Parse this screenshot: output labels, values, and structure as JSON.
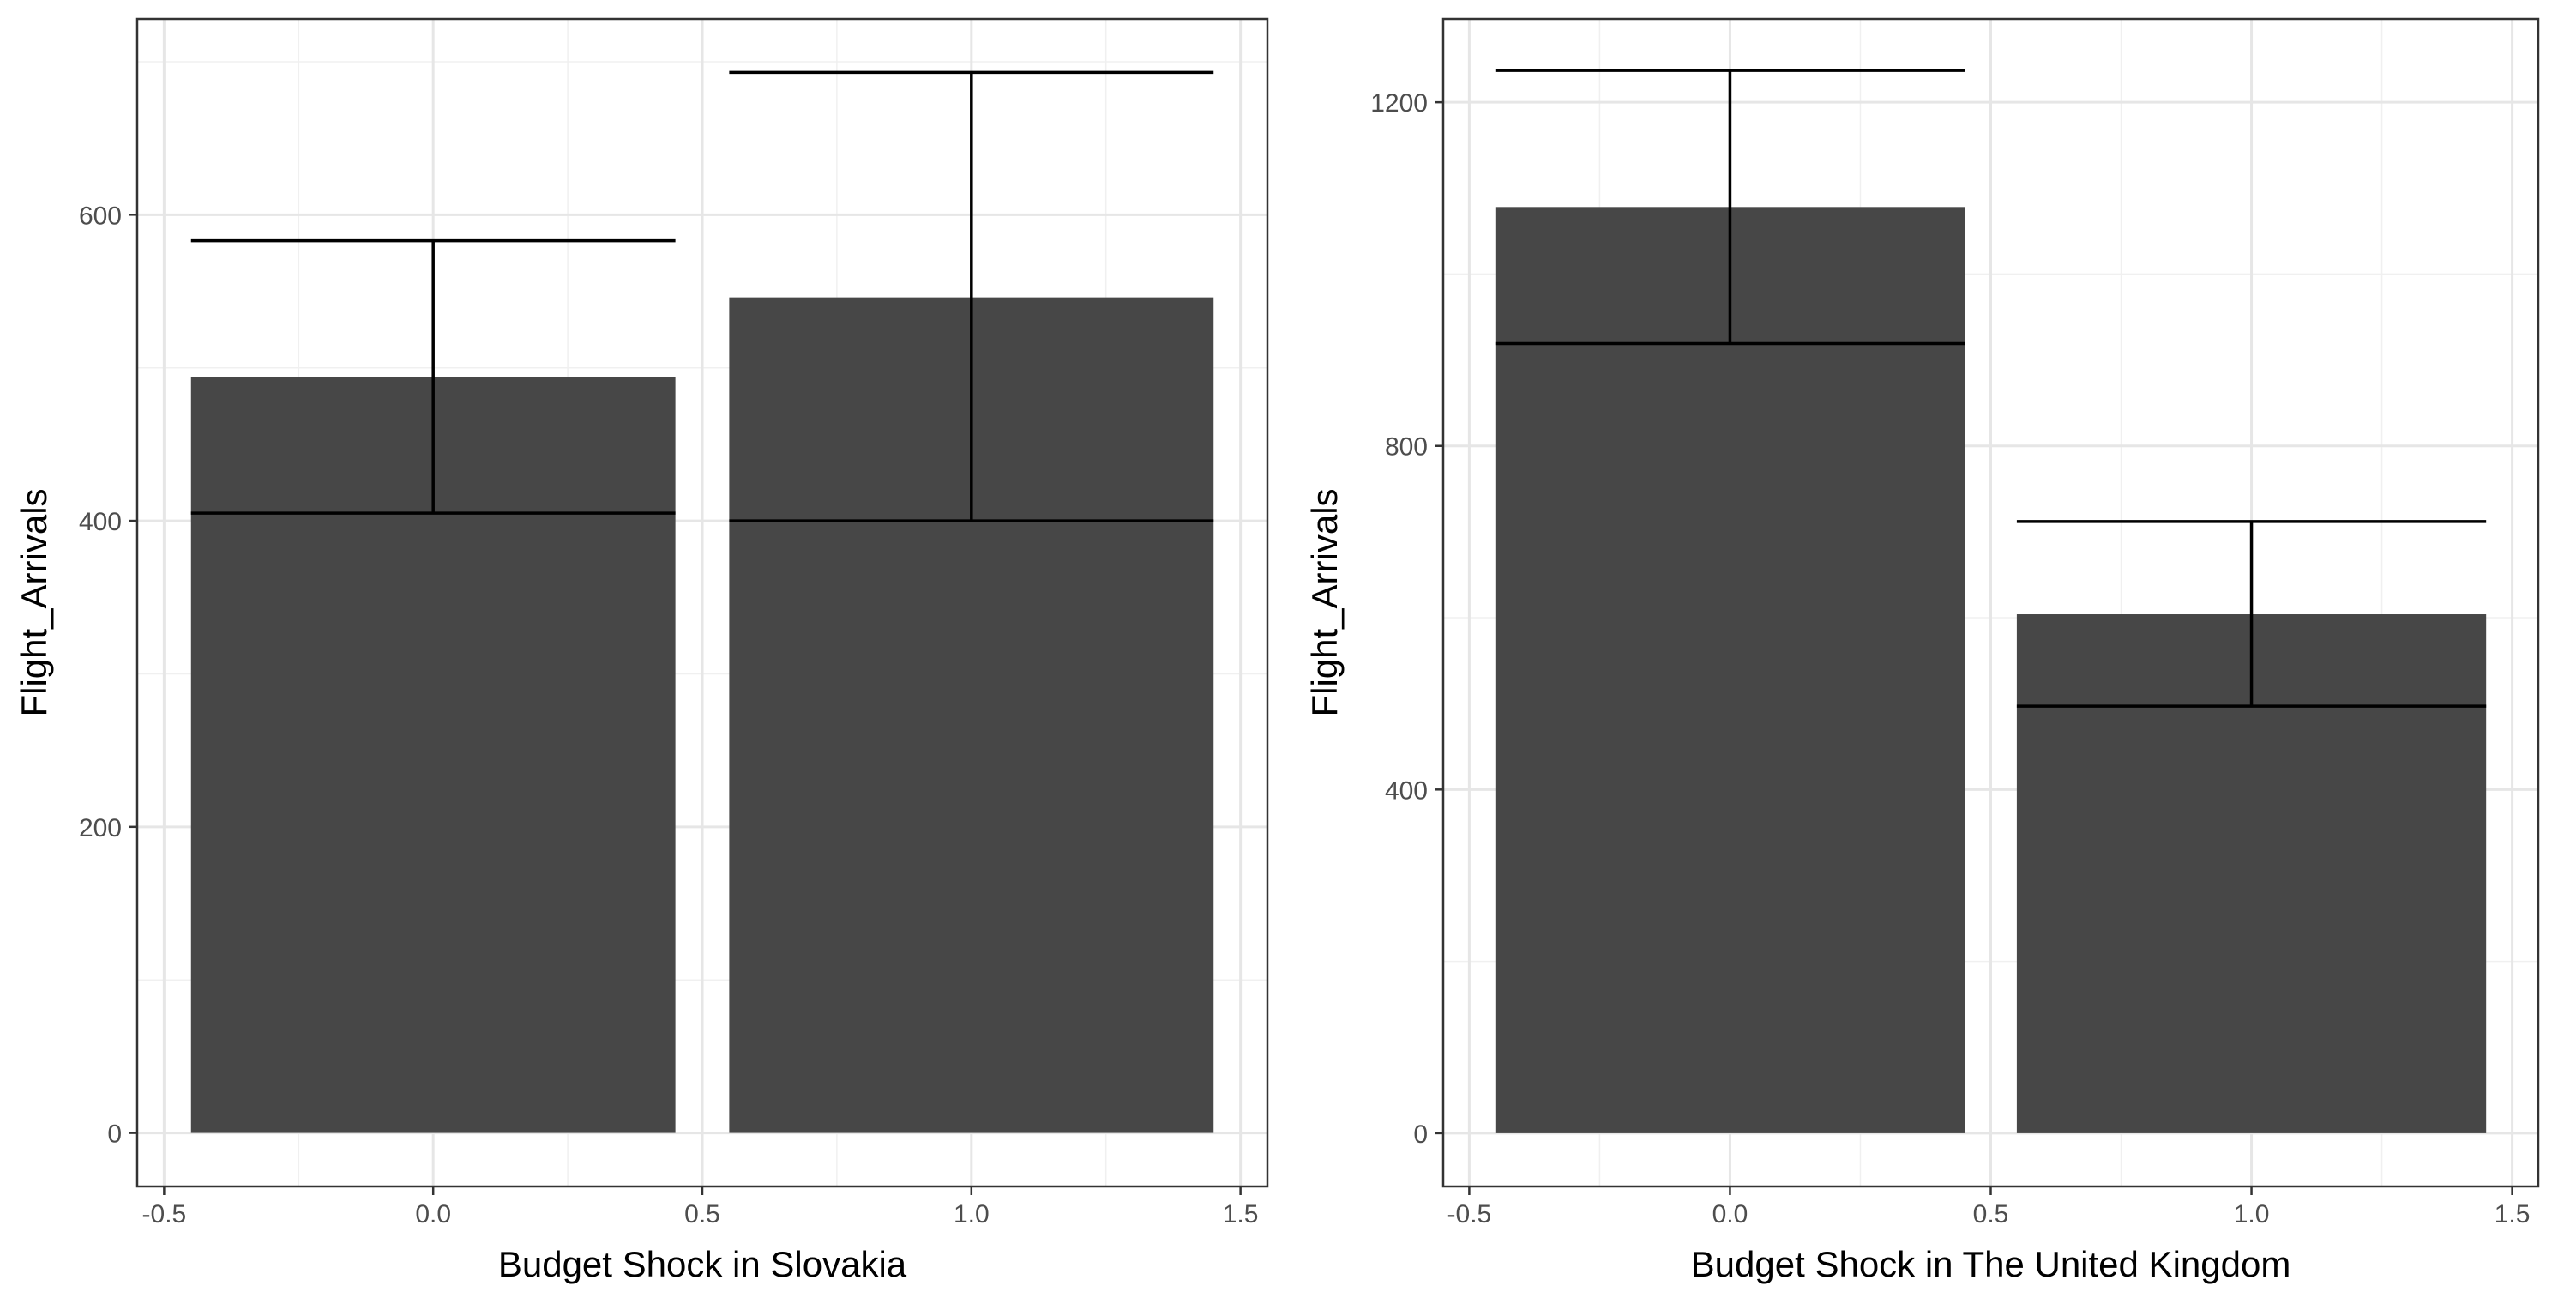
{
  "chart_data": [
    {
      "type": "bar",
      "xlabel": "Budget Shock in Slovakia",
      "ylabel": "Flight_Arrivals",
      "x": [
        0,
        1
      ],
      "values": [
        494,
        546
      ],
      "error_low": [
        405,
        400
      ],
      "error_high": [
        583,
        693
      ],
      "bar_width": 0.9,
      "xlim": [
        -0.55,
        1.55
      ],
      "ylim": [
        -35,
        728
      ],
      "x_ticks": [
        -0.5,
        0.0,
        0.5,
        1.0,
        1.5
      ],
      "x_tick_labels": [
        "-0.5",
        "0.0",
        "0.5",
        "1.0",
        "1.5"
      ],
      "y_ticks": [
        0,
        200,
        400,
        600
      ],
      "y_tick_labels": [
        "0",
        "200",
        "400",
        "600"
      ],
      "grid": true,
      "bar_color": "#474747"
    },
    {
      "type": "bar",
      "xlabel": "Budget Shock in The United Kingdom",
      "ylabel": "Flight_Arrivals",
      "x": [
        0,
        1
      ],
      "values": [
        1078,
        604
      ],
      "error_low": [
        919,
        497
      ],
      "error_high": [
        1237,
        712
      ],
      "bar_width": 0.9,
      "xlim": [
        -0.55,
        1.55
      ],
      "ylim": [
        -62,
        1297
      ],
      "x_ticks": [
        -0.5,
        0.0,
        0.5,
        1.0,
        1.5
      ],
      "x_tick_labels": [
        "-0.5",
        "0.0",
        "0.5",
        "1.0",
        "1.5"
      ],
      "y_ticks": [
        0,
        400,
        800,
        1200
      ],
      "y_tick_labels": [
        "0",
        "400",
        "800",
        "1200"
      ],
      "grid": true,
      "bar_color": "#474747"
    }
  ]
}
